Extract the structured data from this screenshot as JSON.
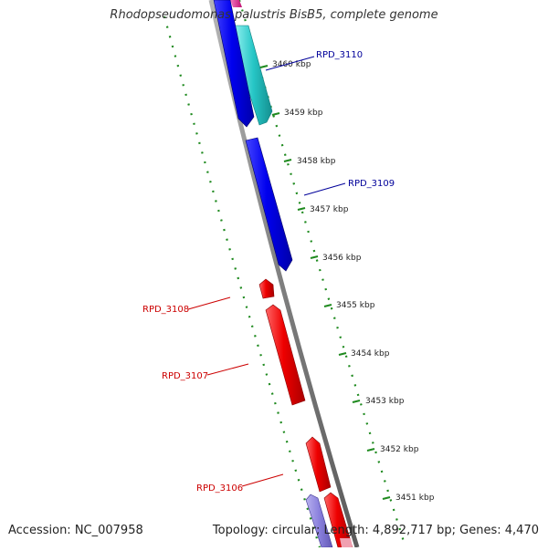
{
  "title": "Rhodopseudomonas palustris BisB5, complete genome",
  "footer": {
    "accession": "Accession: NC_007958",
    "summary": "Topology: circular; Length: 4,892,717 bp; Genes: 4,470"
  },
  "scale_ticks": [
    {
      "label": "3460 kbp"
    },
    {
      "label": "3459 kbp"
    },
    {
      "label": "3458 kbp"
    },
    {
      "label": "3457 kbp"
    },
    {
      "label": "3456 kbp"
    },
    {
      "label": "3455 kbp"
    },
    {
      "label": "3454 kbp"
    },
    {
      "label": "3453 kbp"
    },
    {
      "label": "3452 kbp"
    },
    {
      "label": "3451 kbp"
    }
  ],
  "gene_labels": [
    {
      "label": "RPD_3110",
      "color": "#00009a"
    },
    {
      "label": "RPD_3109",
      "color": "#00009a"
    },
    {
      "label": "RPD_3108",
      "color": "#cc0000"
    },
    {
      "label": "RPD_3107",
      "color": "#cc0000"
    },
    {
      "label": "RPD_3106",
      "color": "#cc0000"
    }
  ],
  "colors": {
    "backbone": "#8a8a8a",
    "forward_strand": "#0000ee",
    "reverse_strand": "#ee0000",
    "neighbor_forward": "#26c6c6",
    "neighbor_reverse": "#8a80dd",
    "top_partial": "#e0208c",
    "scale_dots": "#1f8a1f"
  }
}
